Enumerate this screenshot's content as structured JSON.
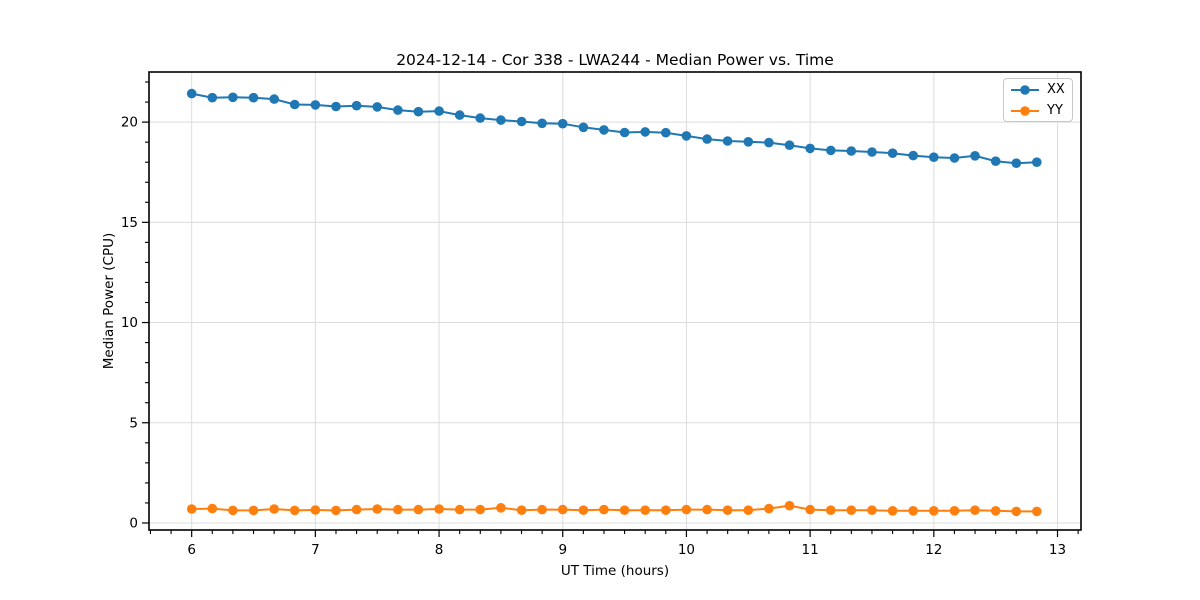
{
  "figure": {
    "background": "#ffffff"
  },
  "chart_data": {
    "type": "line",
    "title": "2024-12-14 - Cor 338 - LWA244 - Median Power vs. Time",
    "xlabel": "UT Time (hours)",
    "ylabel": "Median Power (CPU)",
    "xlim": [
      5.655,
      13.19
    ],
    "ylim": [
      -0.35,
      22.5
    ],
    "x_ticks": [
      6,
      7,
      8,
      9,
      10,
      11,
      12,
      13
    ],
    "y_ticks": [
      0,
      5,
      10,
      15,
      20
    ],
    "x_minor_interval": 0.16667,
    "y_minor_interval": 1,
    "grid": true,
    "legend_position": "upper right",
    "x": [
      6.0,
      6.167,
      6.333,
      6.5,
      6.667,
      6.833,
      7.0,
      7.167,
      7.333,
      7.5,
      7.667,
      7.833,
      8.0,
      8.167,
      8.333,
      8.5,
      8.667,
      8.833,
      9.0,
      9.167,
      9.333,
      9.5,
      9.667,
      9.833,
      10.0,
      10.167,
      10.333,
      10.5,
      10.667,
      10.833,
      11.0,
      11.167,
      11.333,
      11.5,
      11.667,
      11.833,
      12.0,
      12.167,
      12.333,
      12.5,
      12.667,
      12.833
    ],
    "series": [
      {
        "name": "XX",
        "color": "#1f77b4",
        "values": [
          21.42,
          21.22,
          21.24,
          21.22,
          21.15,
          20.88,
          20.86,
          20.78,
          20.82,
          20.76,
          20.6,
          20.52,
          20.55,
          20.35,
          20.2,
          20.1,
          20.03,
          19.94,
          19.92,
          19.74,
          19.61,
          19.48,
          19.51,
          19.47,
          19.31,
          19.15,
          19.06,
          19.02,
          18.98,
          18.85,
          18.69,
          18.59,
          18.56,
          18.51,
          18.45,
          18.33,
          18.25,
          18.21,
          18.32,
          18.05,
          17.95,
          18.0
        ]
      },
      {
        "name": "YY",
        "color": "#ff7f0e",
        "values": [
          0.7,
          0.72,
          0.63,
          0.63,
          0.7,
          0.63,
          0.65,
          0.63,
          0.67,
          0.7,
          0.67,
          0.67,
          0.7,
          0.67,
          0.67,
          0.76,
          0.64,
          0.67,
          0.67,
          0.64,
          0.67,
          0.64,
          0.64,
          0.64,
          0.67,
          0.67,
          0.64,
          0.64,
          0.72,
          0.86,
          0.67,
          0.64,
          0.64,
          0.64,
          0.61,
          0.61,
          0.61,
          0.61,
          0.64,
          0.61,
          0.58,
          0.58
        ]
      }
    ],
    "colors": {
      "grid": "#dcdcdc",
      "axes": "#000000",
      "text": "#000000",
      "background": "#ffffff"
    }
  }
}
